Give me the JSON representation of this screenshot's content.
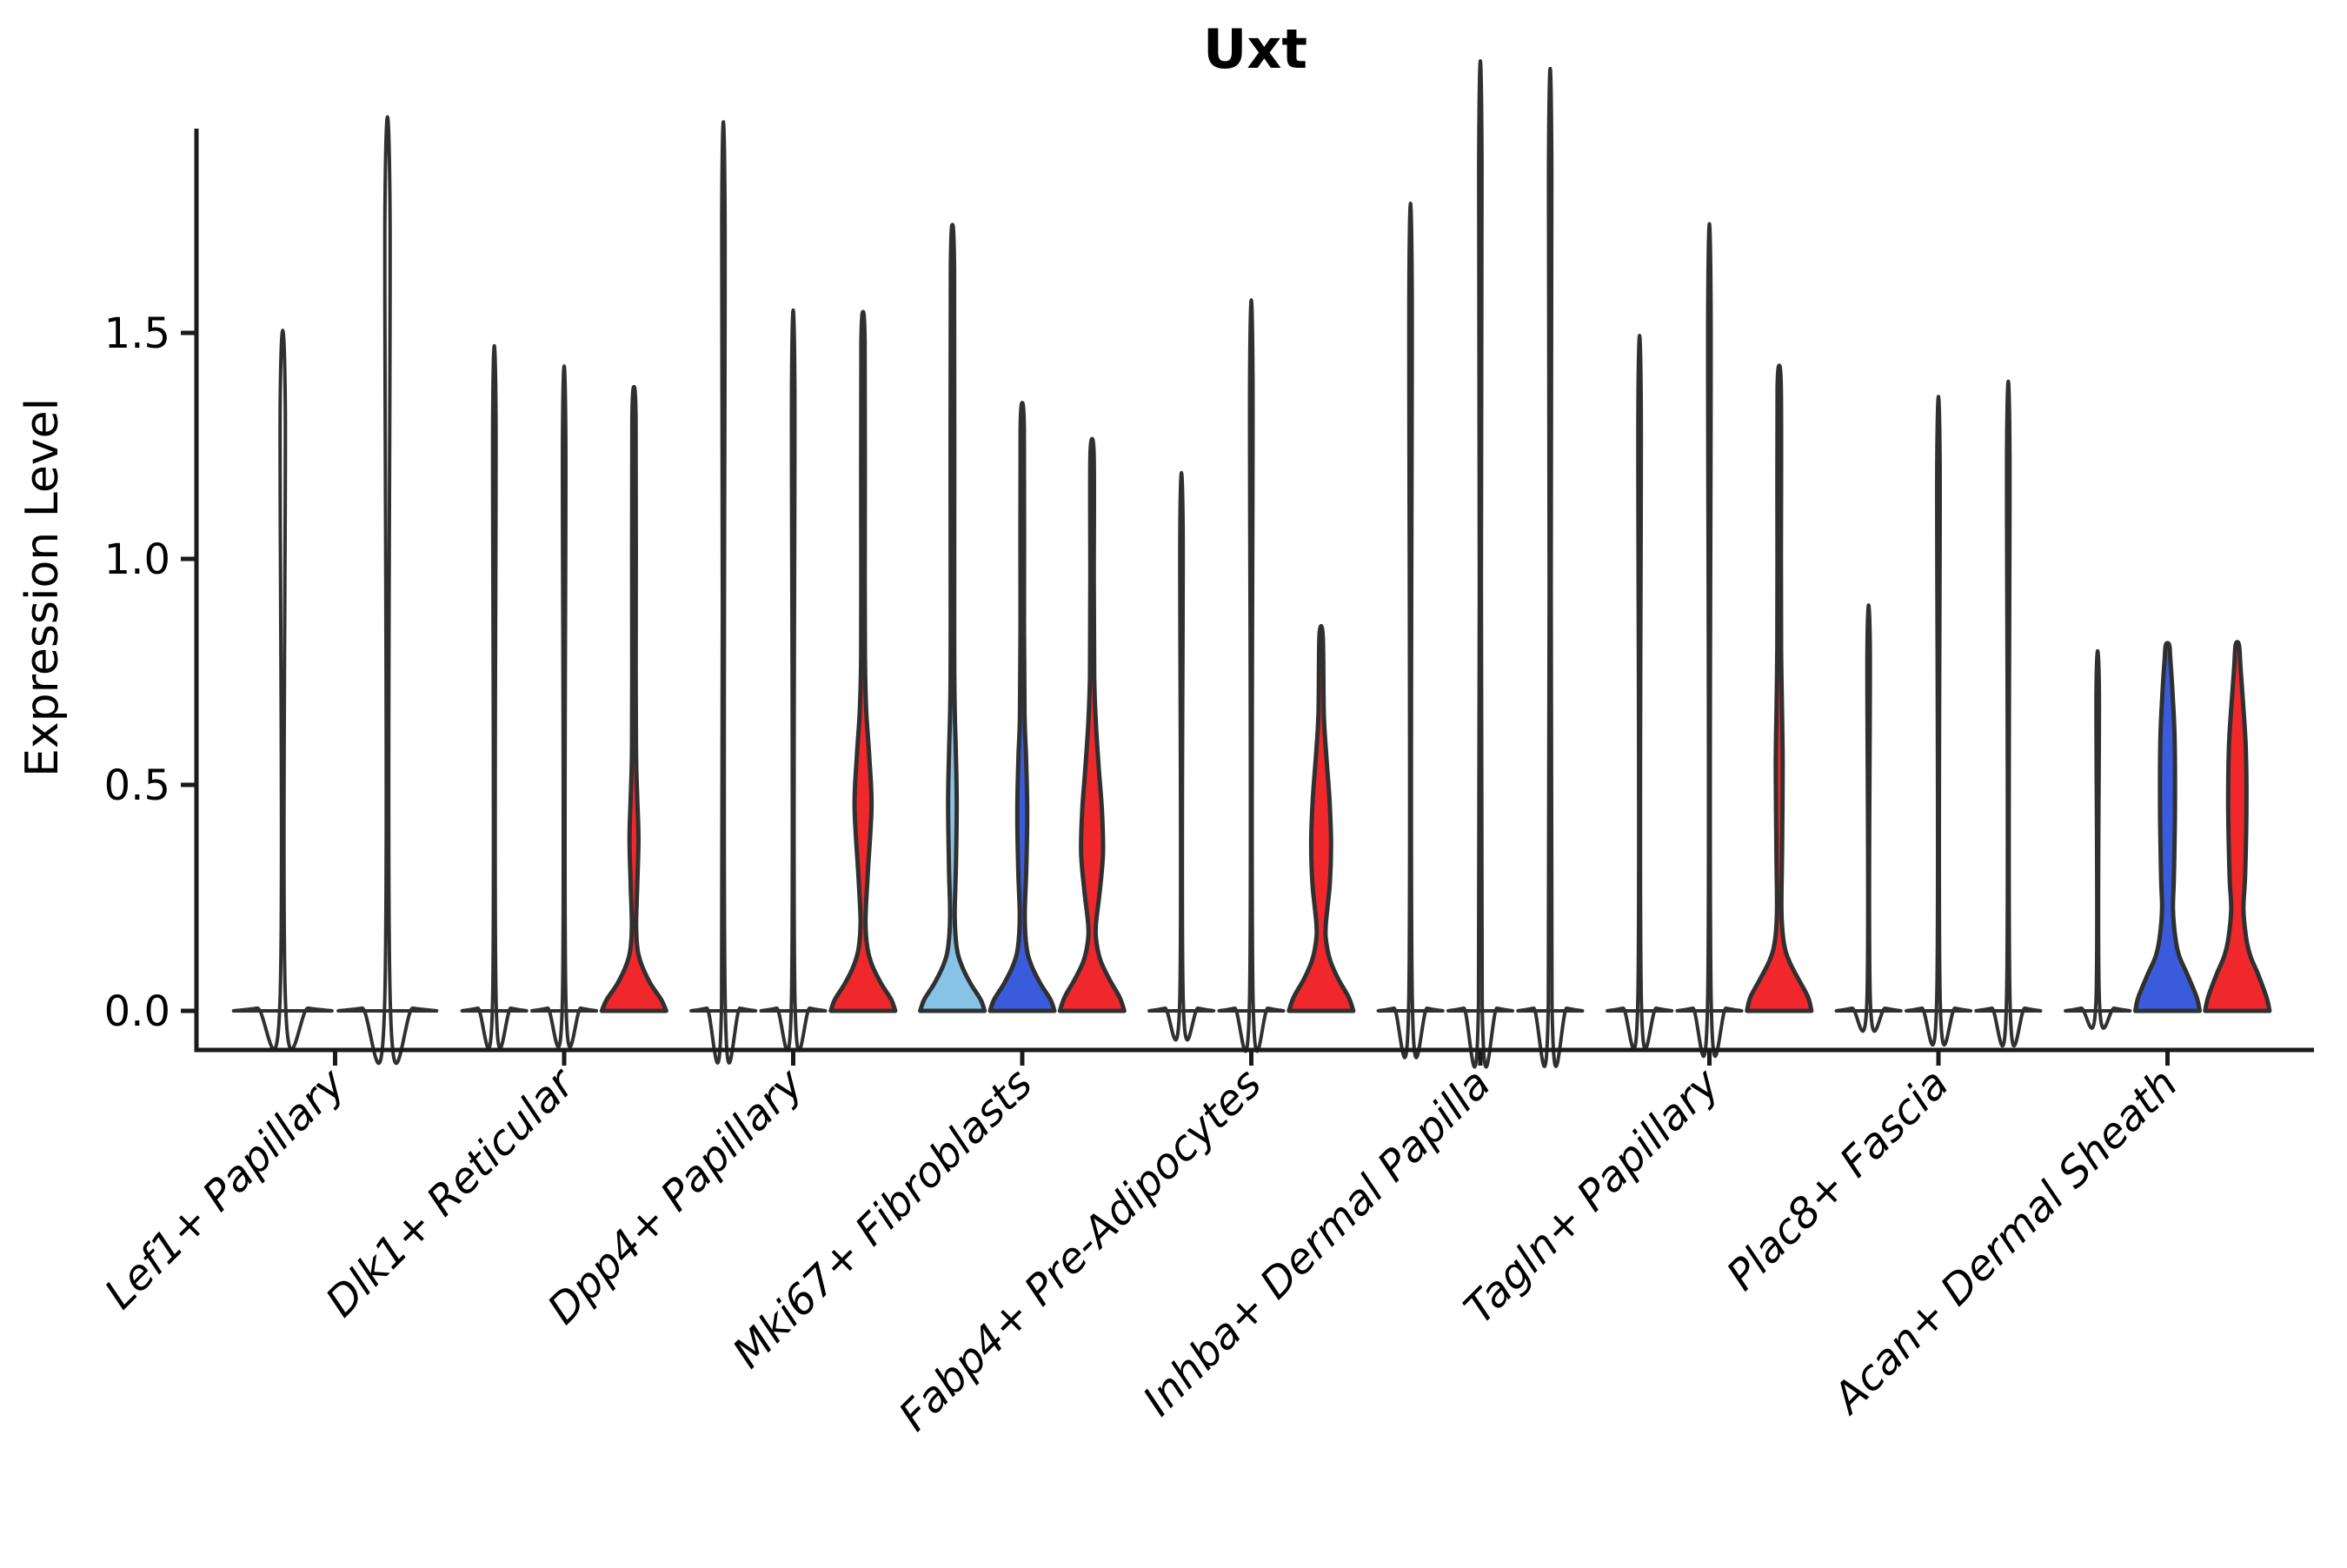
{
  "chart_data": {
    "type": "violin",
    "title": "Uxt",
    "ylabel": "Expression Level",
    "xlabel": "",
    "yticks": [
      "0.0",
      "0.5",
      "1.0",
      "1.5"
    ],
    "ytick_values": [
      0.0,
      0.5,
      1.0,
      1.5
    ],
    "ylim": [
      -0.05,
      1.95
    ],
    "legend": "none",
    "grid": "off",
    "palette": {
      "lightblue": "#87C3E6",
      "blue": "#3A5CDC",
      "red": "#F0282B",
      "none": "#FFFFFF"
    },
    "stroke_color": "#303030",
    "axis_color": "#1a1a1a",
    "thin_profile_template": [
      [
        0,
        0.97
      ],
      [
        0.006,
        0.5
      ],
      [
        0.016,
        0.055
      ],
      [
        "max",
        0.05
      ]
    ],
    "categories": [
      "Lef1+ Papillary",
      "Dlk1+ Reticular",
      "Dpp4+ Papillary",
      "Mki67+ Fibroblasts",
      "Fabp4+ Pre-Adipocytes",
      "Inhba+ Dermal Papilla",
      "Tagln+ Papillary",
      "Plac8+ Fascia",
      "Acan+ Dermal Sheath"
    ],
    "groups": [
      {
        "category": "Lef1+ Papillary",
        "violins": [
          {
            "color": "none",
            "max": 1.34,
            "shape": "thin"
          },
          {
            "color": "none",
            "max": 1.76,
            "shape": "thin"
          }
        ]
      },
      {
        "category": "Dlk1+ Reticular",
        "violins": [
          {
            "color": "none",
            "max": 1.31,
            "shape": "thin"
          },
          {
            "color": "none",
            "max": 1.27,
            "shape": "thin"
          },
          {
            "color": "red",
            "max": 1.31,
            "shape": "violin",
            "profile": [
              [
                0,
                0.97
              ],
              [
                0.025,
                0.82
              ],
              [
                0.06,
                0.5
              ],
              [
                0.1,
                0.24
              ],
              [
                0.135,
                0.11
              ],
              [
                0.19,
                0.065
              ],
              [
                0.28,
                0.1
              ],
              [
                0.38,
                0.135
              ],
              [
                0.47,
                0.1
              ],
              [
                0.56,
                0.065
              ],
              [
                0.75,
                0.052
              ],
              [
                1.31,
                0.05
              ]
            ]
          }
        ]
      },
      {
        "category": "Dpp4+ Papillary",
        "violins": [
          {
            "color": "none",
            "max": 1.75,
            "shape": "thin"
          },
          {
            "color": "none",
            "max": 1.38,
            "shape": "thin"
          },
          {
            "color": "red",
            "max": 1.48,
            "shape": "violin",
            "profile": [
              [
                0,
                0.97
              ],
              [
                0.025,
                0.85
              ],
              [
                0.06,
                0.55
              ],
              [
                0.1,
                0.28
              ],
              [
                0.14,
                0.13
              ],
              [
                0.2,
                0.075
              ],
              [
                0.3,
                0.14
              ],
              [
                0.45,
                0.255
              ],
              [
                0.56,
                0.19
              ],
              [
                0.66,
                0.1
              ],
              [
                0.76,
                0.062
              ],
              [
                0.95,
                0.052
              ],
              [
                1.48,
                0.05
              ]
            ]
          }
        ]
      },
      {
        "category": "Mki67+ Fibroblasts",
        "violins": [
          {
            "color": "lightblue",
            "max": 1.64,
            "shape": "violin",
            "profile": [
              [
                0,
                0.97
              ],
              [
                0.025,
                0.85
              ],
              [
                0.06,
                0.55
              ],
              [
                0.1,
                0.28
              ],
              [
                0.14,
                0.13
              ],
              [
                0.21,
                0.07
              ],
              [
                0.32,
                0.105
              ],
              [
                0.46,
                0.13
              ],
              [
                0.58,
                0.1
              ],
              [
                0.67,
                0.068
              ],
              [
                0.85,
                0.052
              ],
              [
                1.64,
                0.05
              ]
            ]
          },
          {
            "color": "blue",
            "max": 1.29,
            "shape": "violin",
            "profile": [
              [
                0,
                0.97
              ],
              [
                0.025,
                0.85
              ],
              [
                0.06,
                0.55
              ],
              [
                0.1,
                0.28
              ],
              [
                0.14,
                0.13
              ],
              [
                0.21,
                0.075
              ],
              [
                0.31,
                0.12
              ],
              [
                0.44,
                0.15
              ],
              [
                0.56,
                0.115
              ],
              [
                0.65,
                0.072
              ],
              [
                0.85,
                0.052
              ],
              [
                1.29,
                0.05
              ]
            ]
          },
          {
            "color": "red",
            "max": 1.23,
            "shape": "violin",
            "profile": [
              [
                0,
                0.97
              ],
              [
                0.03,
                0.83
              ],
              [
                0.07,
                0.52
              ],
              [
                0.11,
                0.26
              ],
              [
                0.15,
                0.135
              ],
              [
                0.19,
                0.115
              ],
              [
                0.27,
                0.24
              ],
              [
                0.35,
                0.33
              ],
              [
                0.44,
                0.3
              ],
              [
                0.53,
                0.21
              ],
              [
                0.63,
                0.12
              ],
              [
                0.74,
                0.065
              ],
              [
                0.95,
                0.052
              ],
              [
                1.23,
                0.05
              ]
            ]
          }
        ]
      },
      {
        "category": "Fabp4+ Pre-Adipocytes",
        "violins": [
          {
            "color": "none",
            "max": 1.06,
            "shape": "thin"
          },
          {
            "color": "none",
            "max": 1.4,
            "shape": "thin"
          },
          {
            "color": "red",
            "max": 0.83,
            "shape": "violin",
            "profile": [
              [
                0,
                0.97
              ],
              [
                0.03,
                0.83
              ],
              [
                0.07,
                0.52
              ],
              [
                0.11,
                0.28
              ],
              [
                0.15,
                0.16
              ],
              [
                0.19,
                0.14
              ],
              [
                0.28,
                0.26
              ],
              [
                0.37,
                0.3
              ],
              [
                0.47,
                0.25
              ],
              [
                0.57,
                0.15
              ],
              [
                0.66,
                0.08
              ],
              [
                0.83,
                0.05
              ]
            ]
          }
        ]
      },
      {
        "category": "Inhba+ Dermal Papilla",
        "violins": [
          {
            "color": "none",
            "max": 1.59,
            "shape": "thin"
          },
          {
            "color": "none",
            "max": 1.87,
            "shape": "thin"
          },
          {
            "color": "none",
            "max": 1.855,
            "shape": "thin"
          }
        ]
      },
      {
        "category": "Tagln+ Papillary",
        "violins": [
          {
            "color": "none",
            "max": 1.33,
            "shape": "thin"
          },
          {
            "color": "none",
            "max": 1.55,
            "shape": "thin"
          },
          {
            "color": "red",
            "max": 1.38,
            "shape": "violin",
            "profile": [
              [
                0,
                0.97
              ],
              [
                0.03,
                0.87
              ],
              [
                0.07,
                0.58
              ],
              [
                0.11,
                0.3
              ],
              [
                0.15,
                0.14
              ],
              [
                0.22,
                0.068
              ],
              [
                0.35,
                0.085
              ],
              [
                0.54,
                0.105
              ],
              [
                0.68,
                0.08
              ],
              [
                0.8,
                0.058
              ],
              [
                1.0,
                0.052
              ],
              [
                1.38,
                0.05
              ]
            ]
          }
        ]
      },
      {
        "category": "Plac8+ Fascia",
        "violins": [
          {
            "color": "none",
            "max": 0.8,
            "shape": "thin"
          },
          {
            "color": "none",
            "max": 1.21,
            "shape": "thin"
          },
          {
            "color": "none",
            "max": 1.24,
            "shape": "thin"
          }
        ]
      },
      {
        "category": "Acan+ Dermal Sheath",
        "violins": [
          {
            "color": "none",
            "max": 0.71,
            "shape": "thin"
          },
          {
            "color": "blue",
            "max": 0.81,
            "shape": "violin",
            "profile": [
              [
                0,
                0.97
              ],
              [
                0.03,
                0.88
              ],
              [
                0.08,
                0.6
              ],
              [
                0.12,
                0.36
              ],
              [
                0.16,
                0.24
              ],
              [
                0.225,
                0.165
              ],
              [
                0.3,
                0.195
              ],
              [
                0.45,
                0.225
              ],
              [
                0.6,
                0.215
              ],
              [
                0.7,
                0.155
              ],
              [
                0.78,
                0.085
              ],
              [
                0.81,
                0.05
              ]
            ]
          },
          {
            "color": "red",
            "max": 0.81,
            "shape": "violin",
            "profile": [
              [
                0,
                0.97
              ],
              [
                0.03,
                0.88
              ],
              [
                0.08,
                0.63
              ],
              [
                0.12,
                0.4
              ],
              [
                0.16,
                0.27
              ],
              [
                0.225,
                0.185
              ],
              [
                0.3,
                0.235
              ],
              [
                0.45,
                0.275
              ],
              [
                0.58,
                0.255
              ],
              [
                0.68,
                0.175
              ],
              [
                0.76,
                0.095
              ],
              [
                0.81,
                0.05
              ]
            ]
          }
        ]
      }
    ]
  }
}
